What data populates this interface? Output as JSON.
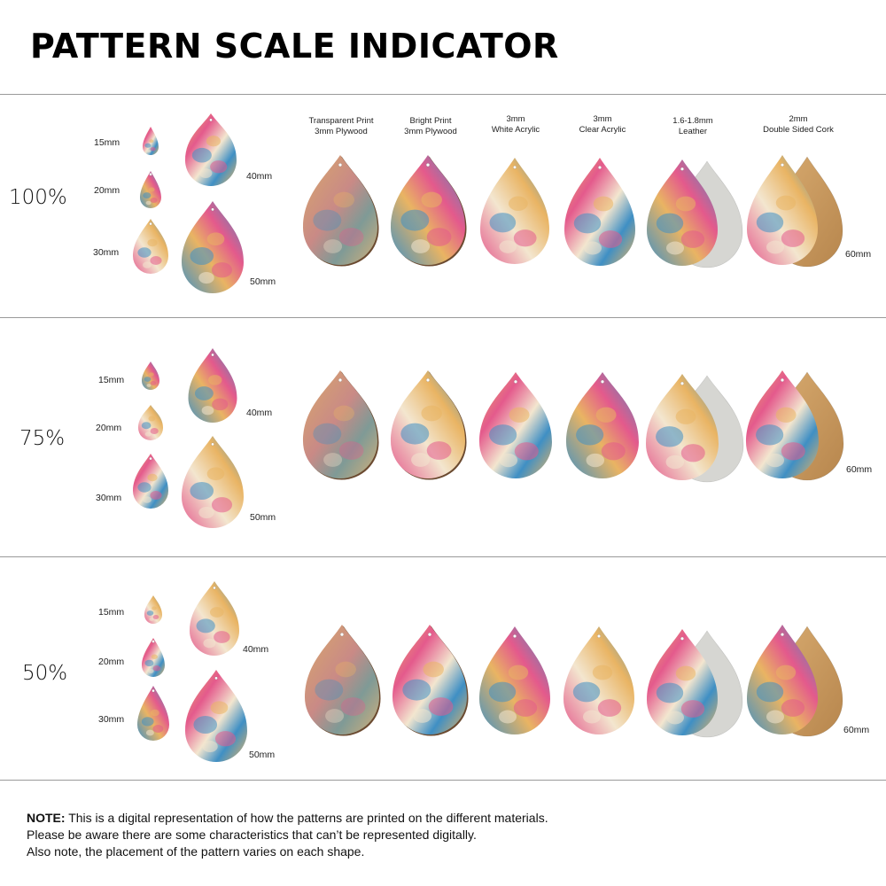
{
  "title": "PATTERN SCALE INDICATOR",
  "materials": [
    {
      "line1": "Transparent Print",
      "line2": "3mm Plywood"
    },
    {
      "line1": "Bright Print",
      "line2": "3mm Plywood"
    },
    {
      "line1": "3mm",
      "line2": "White Acrylic"
    },
    {
      "line1": "3mm",
      "line2": "Clear Acrylic"
    },
    {
      "line1": "1.6-1.8mm",
      "line2": "Leather"
    },
    {
      "line1": "2mm",
      "line2": "Double Sided Cork"
    }
  ],
  "sizes": {
    "s15": "15mm",
    "s20": "20mm",
    "s30": "30mm",
    "s40": "40mm",
    "s50": "50mm",
    "s60": "60mm"
  },
  "scales": [
    {
      "label": "100%"
    },
    {
      "label": "75%"
    },
    {
      "label": "50%"
    }
  ],
  "note": {
    "bold": "NOTE:",
    "line1": " This is a digital representation of how the patterns are printed on the different materials.",
    "line2": "Please be aware there are some characteristics that can’t be represented digitally.",
    "line3": "Also note, the placement of the pattern varies on each shape."
  },
  "colors": {
    "pink": "#e45a8c",
    "blue": "#3f8fc4",
    "gold": "#e9b463",
    "cream": "#f3e6cf",
    "cork": "#c99a5e",
    "leather_back": "#d6d6d2",
    "wood_edge": "#6b4a30"
  }
}
